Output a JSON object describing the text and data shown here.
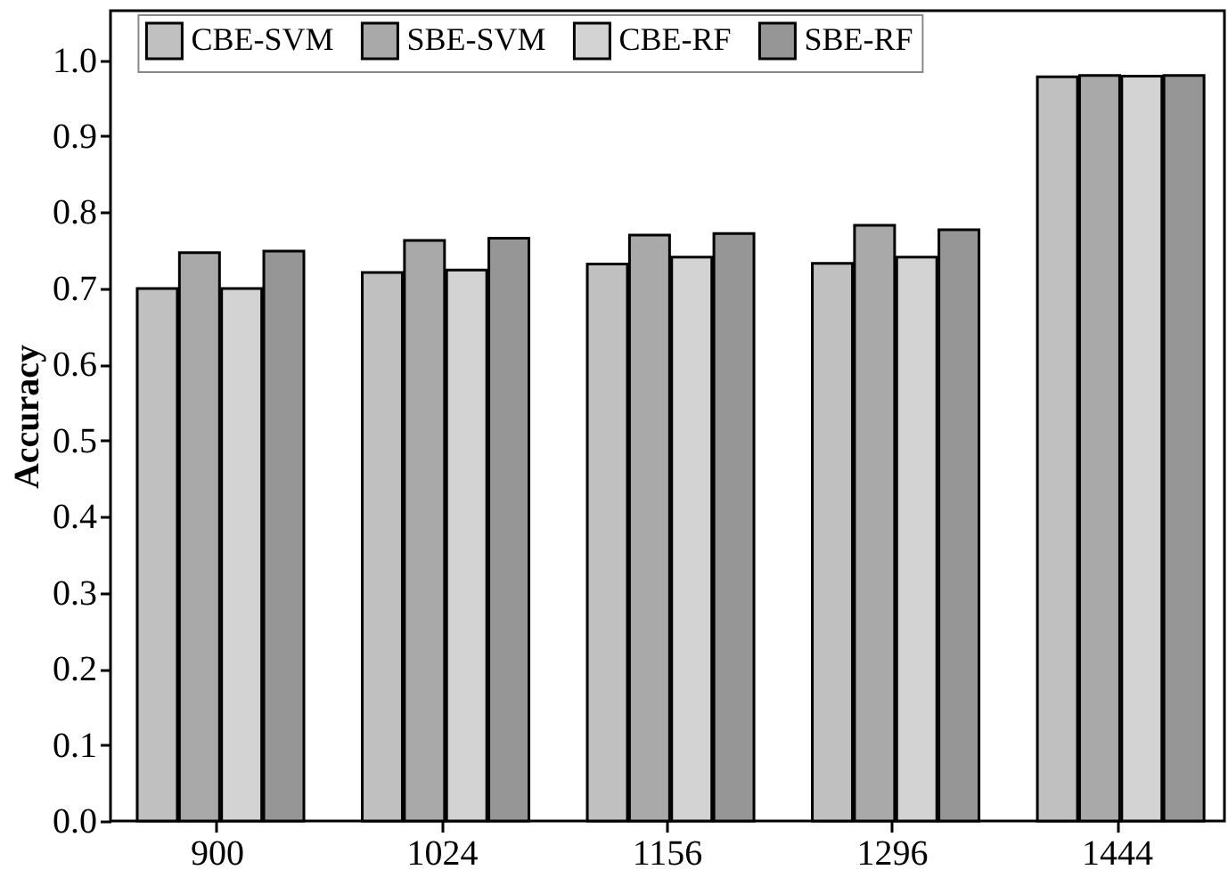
{
  "chart_data": {
    "type": "bar",
    "ylabel": "Accuracy",
    "categories": [
      "900",
      "1024",
      "1156",
      "1296",
      "1444"
    ],
    "series": [
      {
        "name": "CBE-SVM",
        "color": "#c0c0c0",
        "values": [
          0.7,
          0.721,
          0.732,
          0.733,
          0.978
        ]
      },
      {
        "name": "SBE-SVM",
        "color": "#a9a9a9",
        "values": [
          0.747,
          0.763,
          0.77,
          0.783,
          0.98
        ]
      },
      {
        "name": "CBE-RF",
        "color": "#d3d3d3",
        "values": [
          0.7,
          0.724,
          0.741,
          0.741,
          0.979
        ]
      },
      {
        "name": "SBE-RF",
        "color": "#969696",
        "values": [
          0.749,
          0.766,
          0.772,
          0.777,
          0.98
        ]
      }
    ],
    "ylim": [
      0,
      1.065
    ],
    "yticks": [
      {
        "value": 0,
        "label": "0.0"
      },
      {
        "value": 0.1,
        "label": "0.1"
      },
      {
        "value": 0.2,
        "label": "0.2"
      },
      {
        "value": 0.3,
        "label": "0.3"
      },
      {
        "value": 0.4,
        "label": "0.4"
      },
      {
        "value": 0.5,
        "label": "0.5"
      },
      {
        "value": 0.6,
        "label": "0.6"
      },
      {
        "value": 0.7,
        "label": "0.7"
      },
      {
        "value": 0.8,
        "label": "0.8"
      },
      {
        "value": 0.9,
        "label": "0.9"
      },
      {
        "value": 1.0,
        "label": "1.0"
      }
    ],
    "grid": false,
    "legend": "top"
  }
}
